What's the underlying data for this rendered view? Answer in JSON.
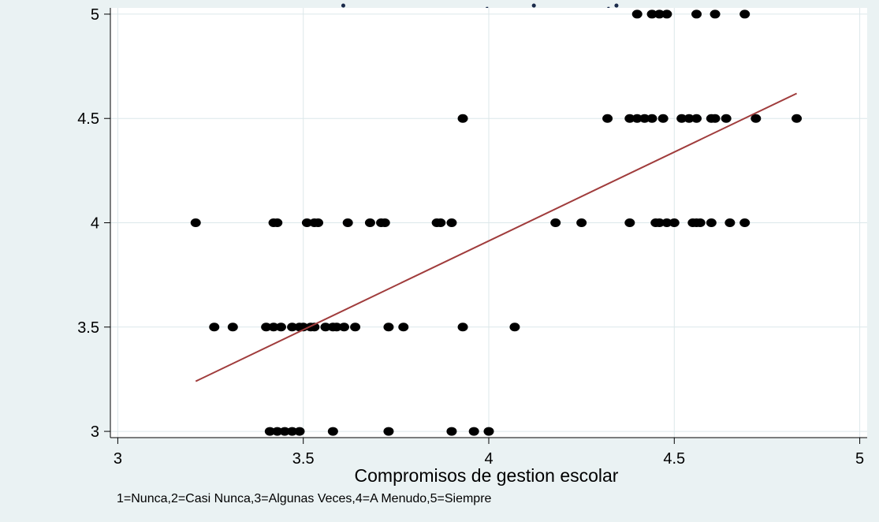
{
  "chart_data": {
    "type": "scatter",
    "title": "... compromisos y competencias gestion ...",
    "xlabel": "Compromisos de gestion escolar",
    "ylabel": "",
    "note": "1=Nunca,2=Casi Nunca,3=Algunas Veces,4=A Menudo,5=Siempre",
    "xlim": [
      2.98,
      5.02
    ],
    "ylim": [
      2.97,
      5.03
    ],
    "xticks": [
      "3",
      "3.5",
      "4",
      "4.5",
      "5"
    ],
    "yticks": [
      "3",
      "3.5",
      "4",
      "4.5",
      "5"
    ],
    "grid": true,
    "legend": "none",
    "colors": {
      "background": "#eaf2f3",
      "plot": "#ffffff",
      "grid": "#dce7ea",
      "points": "#000000",
      "fit": "#a03c3c"
    },
    "points": [
      [
        4.4,
        5.0
      ],
      [
        4.44,
        5.0
      ],
      [
        4.46,
        5.0
      ],
      [
        4.48,
        5.0
      ],
      [
        4.56,
        5.0
      ],
      [
        4.61,
        5.0
      ],
      [
        4.69,
        5.0
      ],
      [
        3.93,
        4.5
      ],
      [
        4.32,
        4.5
      ],
      [
        4.38,
        4.5
      ],
      [
        4.4,
        4.5
      ],
      [
        4.42,
        4.5
      ],
      [
        4.44,
        4.5
      ],
      [
        4.47,
        4.5
      ],
      [
        4.52,
        4.5
      ],
      [
        4.54,
        4.5
      ],
      [
        4.56,
        4.5
      ],
      [
        4.6,
        4.5
      ],
      [
        4.61,
        4.5
      ],
      [
        4.64,
        4.5
      ],
      [
        4.72,
        4.5
      ],
      [
        4.83,
        4.5
      ],
      [
        3.21,
        4.0
      ],
      [
        3.42,
        4.0
      ],
      [
        3.43,
        4.0
      ],
      [
        3.51,
        4.0
      ],
      [
        3.53,
        4.0
      ],
      [
        3.54,
        4.0
      ],
      [
        3.62,
        4.0
      ],
      [
        3.68,
        4.0
      ],
      [
        3.71,
        4.0
      ],
      [
        3.72,
        4.0
      ],
      [
        3.86,
        4.0
      ],
      [
        3.87,
        4.0
      ],
      [
        3.9,
        4.0
      ],
      [
        4.18,
        4.0
      ],
      [
        4.25,
        4.0
      ],
      [
        4.38,
        4.0
      ],
      [
        4.45,
        4.0
      ],
      [
        4.46,
        4.0
      ],
      [
        4.48,
        4.0
      ],
      [
        4.5,
        4.0
      ],
      [
        4.55,
        4.0
      ],
      [
        4.56,
        4.0
      ],
      [
        4.57,
        4.0
      ],
      [
        4.6,
        4.0
      ],
      [
        4.65,
        4.0
      ],
      [
        4.69,
        4.0
      ],
      [
        3.26,
        3.5
      ],
      [
        3.31,
        3.5
      ],
      [
        3.4,
        3.5
      ],
      [
        3.42,
        3.5
      ],
      [
        3.44,
        3.5
      ],
      [
        3.47,
        3.5
      ],
      [
        3.49,
        3.5
      ],
      [
        3.5,
        3.5
      ],
      [
        3.52,
        3.5
      ],
      [
        3.53,
        3.5
      ],
      [
        3.56,
        3.5
      ],
      [
        3.58,
        3.5
      ],
      [
        3.59,
        3.5
      ],
      [
        3.61,
        3.5
      ],
      [
        3.64,
        3.5
      ],
      [
        3.73,
        3.5
      ],
      [
        3.77,
        3.5
      ],
      [
        3.93,
        3.5
      ],
      [
        4.07,
        3.5
      ],
      [
        3.41,
        3.0
      ],
      [
        3.43,
        3.0
      ],
      [
        3.45,
        3.0
      ],
      [
        3.47,
        3.0
      ],
      [
        3.49,
        3.0
      ],
      [
        3.58,
        3.0
      ],
      [
        3.73,
        3.0
      ],
      [
        3.9,
        3.0
      ],
      [
        3.96,
        3.0
      ],
      [
        4.0,
        3.0
      ]
    ],
    "fit_line": {
      "x": [
        3.21,
        4.83
      ],
      "y": [
        3.24,
        4.62
      ]
    }
  }
}
